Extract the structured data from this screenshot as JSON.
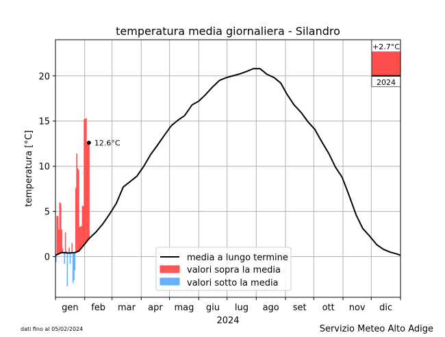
{
  "chart_data": {
    "type": "bar+line",
    "title": "temperatura media giornaliera - Silandro",
    "xlabel": "2024",
    "ylabel": "temperatura [°C]",
    "ylim": [
      -4.5,
      24
    ],
    "yticks": [
      0,
      5,
      10,
      15,
      20
    ],
    "xlim_days": [
      0,
      366
    ],
    "months": [
      "gen",
      "feb",
      "mar",
      "apr",
      "mag",
      "giu",
      "lug",
      "ago",
      "set",
      "ott",
      "nov",
      "dic"
    ],
    "month_starts": [
      0,
      31,
      60,
      91,
      121,
      152,
      182,
      213,
      244,
      274,
      305,
      335,
      366
    ],
    "grid": true,
    "legend": {
      "placement": "lower-center",
      "entries": [
        "media a lungo termine",
        "valori sopra la media",
        "valori sotto la media"
      ]
    },
    "colors": {
      "mean": "#000000",
      "above": "#ff4444",
      "below": "#55aaff"
    },
    "mean_series": {
      "name": "media a lungo termine",
      "day": [
        0,
        6.5,
        13.8,
        21,
        24.7,
        31.2,
        35.6,
        42.8,
        50.1,
        57.4,
        64.6,
        71.9,
        79.2,
        86.4,
        93.7,
        101,
        108,
        116,
        123,
        130,
        137,
        145,
        152,
        159,
        166,
        174,
        181,
        188,
        195,
        203,
        210,
        217,
        224,
        232,
        239,
        246,
        253,
        261,
        268,
        275,
        282,
        290,
        297,
        304,
        311,
        319,
        326,
        333,
        341,
        348,
        355,
        362,
        366
      ],
      "value": [
        0.15,
        0.45,
        0.4,
        0.45,
        0.6,
        1.4,
        2.0,
        2.7,
        3.6,
        4.7,
        5.9,
        7.7,
        8.3,
        8.9,
        10.0,
        11.3,
        12.3,
        13.5,
        14.5,
        15.1,
        15.6,
        16.8,
        17.2,
        17.9,
        18.7,
        19.5,
        19.8,
        20.0,
        20.2,
        20.5,
        20.8,
        20.8,
        20.2,
        19.8,
        19.2,
        17.9,
        16.8,
        15.9,
        14.9,
        14.1,
        12.8,
        11.4,
        9.9,
        8.8,
        6.9,
        4.6,
        3.1,
        2.3,
        1.3,
        0.8,
        0.5,
        0.3,
        0.15
      ]
    },
    "daily_2024": [
      -0.6,
      4.5,
      4.5,
      3.0,
      6.0,
      5.9,
      3.0,
      0.9,
      0.5,
      -0.8,
      2.7,
      0.6,
      -3.3,
      0.3,
      1.0,
      -0.8,
      0.3,
      1.5,
      -2.9,
      -2.6,
      -1.5,
      7.6,
      11.4,
      9.8,
      9.6,
      3.3,
      3.3,
      3.4,
      5.6,
      5.6,
      15.2,
      15.3,
      15.3,
      12.5,
      12.6,
      12.6
    ],
    "last_value_label": "12.6°C",
    "anomaly_inset": {
      "label": "+2.7°C",
      "value": 2.7,
      "year": "2024"
    }
  },
  "footer": {
    "data_note": "dati fino al 05/02/2024",
    "source": "Servizio Meteo Alto Adige"
  }
}
